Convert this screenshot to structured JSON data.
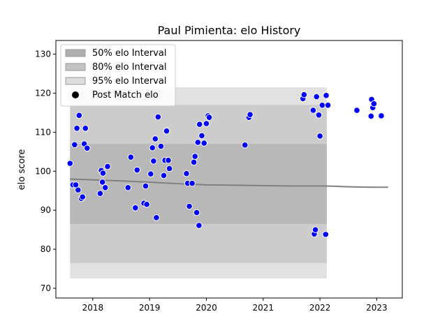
{
  "chart_data": {
    "type": "scatter",
    "title": "Paul Pimienta: elo History",
    "xlabel": "",
    "ylabel": "elo score",
    "xlim": [
      2017.35,
      2023.45
    ],
    "ylim": [
      67.5,
      133.5
    ],
    "x_ticks": [
      2018,
      2019,
      2020,
      2021,
      2022,
      2023
    ],
    "y_ticks": [
      70,
      80,
      90,
      100,
      110,
      120,
      130
    ],
    "grid": false,
    "legend_position": "top-left",
    "legend": [
      {
        "label": "50% elo Interval",
        "kind": "band",
        "color": "#b0b0b0"
      },
      {
        "label": "80% elo Interval",
        "kind": "band",
        "color": "#c4c4c4"
      },
      {
        "label": "95% elo Interval",
        "kind": "band",
        "color": "#dcdcdc"
      },
      {
        "label": "Post Match elo",
        "kind": "marker",
        "color": "#000000"
      }
    ],
    "band_range": {
      "x_start": 2017.6,
      "x_end": 2022.12
    },
    "intervals": [
      {
        "name": "95% elo Interval",
        "lower": 72.5,
        "upper": 121.5,
        "color": "#dcdcdc"
      },
      {
        "name": "80% elo Interval",
        "lower": 76.5,
        "upper": 117.0,
        "color": "#c8c8c8"
      },
      {
        "name": "50% elo Interval",
        "lower": 86.5,
        "upper": 107.0,
        "color": "#b4b4b4"
      }
    ],
    "mean_line": {
      "color": "#808080",
      "x": [
        2017.6,
        2018.5,
        2019.0,
        2019.5,
        2020.0,
        2020.5,
        2021.0,
        2021.5,
        2022.12,
        2022.5,
        2022.9,
        2023.2
      ],
      "y": [
        98.0,
        97.5,
        97.2,
        96.8,
        96.5,
        96.4,
        96.3,
        96.2,
        96.2,
        96.0,
        95.9,
        95.9
      ]
    },
    "series": [
      {
        "name": "Post Match elo",
        "color": "#0000ff",
        "points": [
          [
            2017.6,
            102.0
          ],
          [
            2017.65,
            96.5
          ],
          [
            2017.68,
            106.8
          ],
          [
            2017.72,
            111.0
          ],
          [
            2017.74,
            95.2
          ],
          [
            2017.76,
            114.3
          ],
          [
            2017.8,
            93.0
          ],
          [
            2017.82,
            93.4
          ],
          [
            2017.85,
            107.0
          ],
          [
            2017.87,
            111.0
          ],
          [
            2017.9,
            105.9
          ],
          [
            2017.7,
            96.5
          ],
          [
            2018.13,
            94.3
          ],
          [
            2018.15,
            100.2
          ],
          [
            2018.17,
            97.2
          ],
          [
            2018.18,
            99.5
          ],
          [
            2018.22,
            95.8
          ],
          [
            2018.26,
            101.2
          ],
          [
            2018.62,
            95.8
          ],
          [
            2018.67,
            103.6
          ],
          [
            2018.75,
            90.6
          ],
          [
            2018.78,
            100.3
          ],
          [
            2018.9,
            91.8
          ],
          [
            2018.93,
            96.2
          ],
          [
            2018.95,
            91.5
          ],
          [
            2019.02,
            99.3
          ],
          [
            2019.05,
            106.0
          ],
          [
            2019.07,
            102.6
          ],
          [
            2019.1,
            108.3
          ],
          [
            2019.12,
            88.1
          ],
          [
            2019.15,
            113.9
          ],
          [
            2019.2,
            106.4
          ],
          [
            2019.25,
            98.9
          ],
          [
            2019.27,
            102.8
          ],
          [
            2019.3,
            110.3
          ],
          [
            2019.33,
            102.8
          ],
          [
            2019.35,
            100.7
          ],
          [
            2019.65,
            99.4
          ],
          [
            2019.67,
            96.9
          ],
          [
            2019.7,
            91.0
          ],
          [
            2019.75,
            96.9
          ],
          [
            2019.78,
            102.3
          ],
          [
            2019.8,
            103.8
          ],
          [
            2019.83,
            89.4
          ],
          [
            2019.85,
            107.4
          ],
          [
            2019.87,
            86.1
          ],
          [
            2019.88,
            112.0
          ],
          [
            2019.92,
            109.1
          ],
          [
            2019.96,
            107.2
          ],
          [
            2020.0,
            112.2
          ],
          [
            2020.03,
            114.2
          ],
          [
            2020.05,
            113.8
          ],
          [
            2020.68,
            106.7
          ],
          [
            2020.75,
            113.8
          ],
          [
            2020.77,
            114.5
          ],
          [
            2021.7,
            118.6
          ],
          [
            2021.72,
            119.6
          ],
          [
            2021.88,
            115.6
          ],
          [
            2021.9,
            83.9
          ],
          [
            2021.92,
            85.0
          ],
          [
            2021.94,
            119.1
          ],
          [
            2021.98,
            114.4
          ],
          [
            2022.0,
            109.0
          ],
          [
            2022.04,
            116.9
          ],
          [
            2022.1,
            83.8
          ],
          [
            2022.11,
            119.4
          ],
          [
            2022.14,
            116.9
          ],
          [
            2022.65,
            115.6
          ],
          [
            2022.9,
            114.1
          ],
          [
            2022.91,
            118.4
          ],
          [
            2022.93,
            116.3
          ],
          [
            2022.95,
            117.3
          ],
          [
            2023.08,
            114.2
          ]
        ]
      }
    ]
  }
}
